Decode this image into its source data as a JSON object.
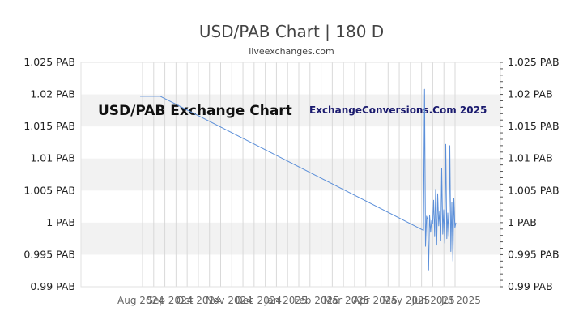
{
  "chart_data": {
    "type": "line",
    "title": "USD/PAB Chart | 180 D",
    "subtitle": "liveexchanges.com",
    "watermark_left": "USD/PAB Exchange Chart",
    "watermark_right": "ExchangeConversions.Com 2025",
    "yticks": [
      "0.99 PAB",
      "0.995 PAB",
      "1 PAB",
      "1.005 PAB",
      "1.01 PAB",
      "1.015 PAB",
      "1.02 PAB",
      "1.025 PAB"
    ],
    "ytick_values": [
      0.99,
      0.995,
      1.0,
      1.005,
      1.01,
      1.015,
      1.02,
      1.025
    ],
    "ylim": [
      0.99,
      1.025
    ],
    "xlim": [
      0,
      180
    ],
    "xtick_labels": [
      "Aug 2024",
      "Sep 2024",
      "Oct 2024",
      "Nov 2024",
      "Dec 2024",
      "Jan 2025",
      "Feb 2025",
      "Mar 2025",
      "Apr 2025",
      "May 2025",
      "Jun 2025",
      "Jul 2025"
    ],
    "grid": true,
    "series_color": "#5b8fd9",
    "band_color": "#f2f2f2",
    "series": [
      {
        "x": [
          0,
          10,
          140,
          140.5,
          141,
          141.5,
          142,
          142.5,
          143,
          143.5,
          144,
          144.5,
          145,
          145.5,
          146,
          146.5,
          147,
          147.5,
          148,
          148.5,
          149,
          149.5,
          150,
          150.5,
          151,
          151.5,
          152,
          152.5,
          153,
          153.5,
          154,
          154.5,
          155,
          155.5,
          156
        ],
        "y": [
          1.0197,
          1.0197,
          0.9988,
          1.0208,
          0.9963,
          1.001,
          1.0005,
          0.9925,
          1.0012,
          0.9985,
          1.0003,
          0.9998,
          1.0035,
          0.9978,
          1.0052,
          0.9965,
          1.0045,
          0.9995,
          1.0018,
          0.9972,
          1.0085,
          0.9982,
          1.002,
          0.9968,
          1.0122,
          0.9975,
          1.0015,
          0.9978,
          1.012,
          0.9955,
          1.0032,
          0.994,
          1.0038,
          0.9992,
          1.0
        ]
      }
    ]
  }
}
